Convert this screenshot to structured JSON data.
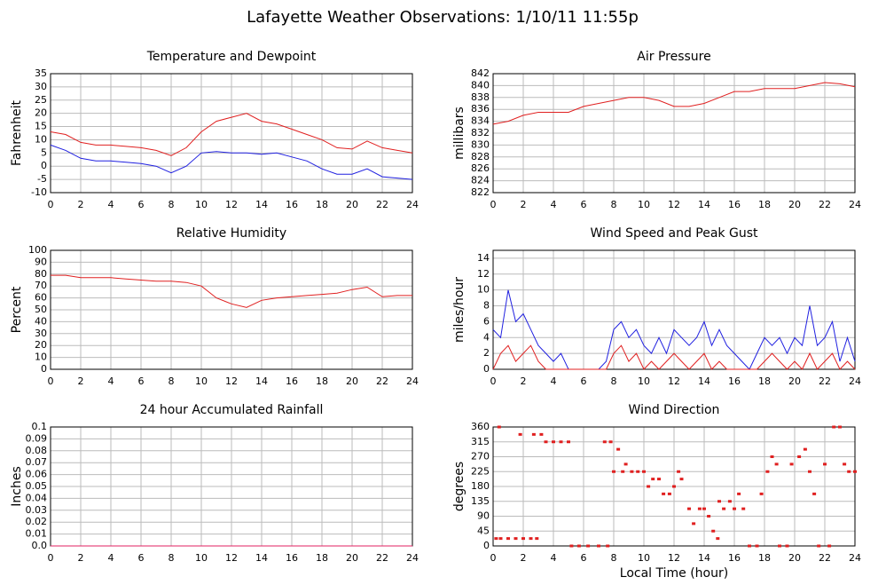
{
  "title": "Lafayette Weather Observations: 1/10/11 11:55p",
  "chart_data": [
    {
      "type": "line",
      "title": "Temperature and Dewpoint",
      "ylabel": "Fahrenheit",
      "grid": true,
      "x": [
        0,
        1,
        2,
        3,
        4,
        5,
        6,
        7,
        8,
        9,
        10,
        11,
        12,
        13,
        14,
        15,
        16,
        17,
        18,
        19,
        20,
        21,
        22,
        23,
        24
      ],
      "series": [
        {
          "color": "#e02020",
          "values": [
            13,
            12,
            9,
            8,
            8,
            7.5,
            7,
            6,
            4,
            7,
            13,
            17,
            18.5,
            20,
            17,
            16,
            14,
            12,
            10,
            7,
            6.5,
            9.5,
            7,
            6,
            5
          ]
        },
        {
          "color": "#2020e0",
          "values": [
            8,
            6,
            3,
            2,
            2,
            1.5,
            1,
            0,
            -2.5,
            0,
            5,
            5.5,
            5,
            5,
            4.5,
            5,
            3.5,
            2,
            -1,
            -3,
            -3,
            -1,
            -4,
            -4.5,
            -5
          ]
        }
      ],
      "xlim": [
        0,
        24
      ],
      "ylim": [
        -10,
        35
      ],
      "xticks": [
        0,
        2,
        4,
        6,
        8,
        10,
        12,
        14,
        16,
        18,
        20,
        22,
        24
      ],
      "yticks": [
        -10,
        -5,
        0,
        5,
        10,
        15,
        20,
        25,
        30,
        35
      ]
    },
    {
      "type": "line",
      "title": "Air Pressure",
      "ylabel": "millibars",
      "grid": true,
      "x": [
        0,
        1,
        2,
        3,
        4,
        5,
        6,
        7,
        8,
        9,
        10,
        11,
        12,
        13,
        14,
        15,
        16,
        17,
        18,
        19,
        20,
        21,
        22,
        23,
        24
      ],
      "series": [
        {
          "color": "#e02020",
          "values": [
            833.5,
            834,
            835,
            835.5,
            835.5,
            835.5,
            836.5,
            837,
            837.5,
            838,
            838,
            837.5,
            836.5,
            836.5,
            837,
            838,
            839,
            839,
            839.5,
            839.5,
            839.5,
            840,
            840.5,
            840.3,
            839.8
          ]
        }
      ],
      "xlim": [
        0,
        24
      ],
      "ylim": [
        822,
        842
      ],
      "xticks": [
        0,
        2,
        4,
        6,
        8,
        10,
        12,
        14,
        16,
        18,
        20,
        22,
        24
      ],
      "yticks": [
        822,
        824,
        826,
        828,
        830,
        832,
        834,
        836,
        838,
        840,
        842
      ]
    },
    {
      "type": "line",
      "title": "Relative Humidity",
      "ylabel": "Percent",
      "grid": true,
      "x": [
        0,
        1,
        2,
        3,
        4,
        5,
        6,
        7,
        8,
        9,
        10,
        11,
        12,
        13,
        14,
        15,
        16,
        17,
        18,
        19,
        20,
        21,
        22,
        23,
        24
      ],
      "series": [
        {
          "color": "#e02020",
          "values": [
            79,
            79,
            77,
            77,
            77,
            76,
            75,
            74,
            74,
            73,
            70,
            60,
            55,
            52,
            58,
            60,
            61,
            62,
            63,
            64,
            67,
            69,
            61,
            62,
            62
          ]
        }
      ],
      "xlim": [
        0,
        24
      ],
      "ylim": [
        0,
        100
      ],
      "xticks": [
        0,
        2,
        4,
        6,
        8,
        10,
        12,
        14,
        16,
        18,
        20,
        22,
        24
      ],
      "yticks": [
        0,
        10,
        20,
        30,
        40,
        50,
        60,
        70,
        80,
        90,
        100
      ]
    },
    {
      "type": "line",
      "title": "Wind Speed and Peak Gust",
      "ylabel": "miles/hour",
      "grid": true,
      "x": [
        0,
        0.5,
        1,
        1.5,
        2,
        2.5,
        3,
        3.5,
        4,
        4.5,
        5,
        5.5,
        6,
        6.5,
        7,
        7.5,
        8,
        8.5,
        9,
        9.5,
        10,
        10.5,
        11,
        11.5,
        12,
        12.5,
        13,
        13.5,
        14,
        14.5,
        15,
        15.5,
        16,
        16.5,
        17,
        17.5,
        18,
        18.5,
        19,
        19.5,
        20,
        20.5,
        21,
        21.5,
        22,
        22.5,
        23,
        23.5,
        24
      ],
      "series": [
        {
          "color": "#2020e0",
          "values": [
            5,
            4,
            10,
            6,
            7,
            5,
            3,
            2,
            1,
            2,
            0,
            0,
            0,
            0,
            0,
            1,
            5,
            6,
            4,
            5,
            3,
            2,
            4,
            2,
            5,
            4,
            3,
            4,
            6,
            3,
            5,
            3,
            2,
            1,
            0,
            2,
            4,
            3,
            4,
            2,
            4,
            3,
            8,
            3,
            4,
            6,
            1,
            4,
            1
          ]
        },
        {
          "color": "#e02020",
          "values": [
            0,
            2,
            3,
            1,
            2,
            3,
            1,
            0,
            0,
            0,
            0,
            0,
            0,
            0,
            0,
            0,
            2,
            3,
            1,
            2,
            0,
            1,
            0,
            1,
            2,
            1,
            0,
            1,
            2,
            0,
            1,
            0,
            0,
            0,
            0,
            0,
            1,
            2,
            1,
            0,
            1,
            0,
            2,
            0,
            1,
            2,
            0,
            1,
            0
          ]
        }
      ],
      "xlim": [
        0,
        24
      ],
      "ylim": [
        0,
        15
      ],
      "xticks": [
        0,
        2,
        4,
        6,
        8,
        10,
        12,
        14,
        16,
        18,
        20,
        22,
        24
      ],
      "yticks": [
        0,
        2,
        4,
        6,
        8,
        10,
        12,
        14
      ]
    },
    {
      "type": "line",
      "title": "24 hour Accumulated Rainfall",
      "ylabel": "Inches",
      "grid": true,
      "x": [
        0,
        2,
        4,
        6,
        8,
        10,
        12,
        14,
        16,
        18,
        20,
        22,
        24
      ],
      "series": [
        {
          "color": "#e02060",
          "values": [
            0,
            0,
            0,
            0,
            0,
            0,
            0,
            0,
            0,
            0,
            0,
            0,
            0
          ]
        }
      ],
      "xlim": [
        0,
        24
      ],
      "ylim": [
        0,
        0.1
      ],
      "xticks": [
        0,
        2,
        4,
        6,
        8,
        10,
        12,
        14,
        16,
        18,
        20,
        22,
        24
      ],
      "yticks": [
        {
          "value": 0,
          "label": "0.0"
        },
        0.01,
        0.02,
        0.03,
        0.04,
        0.05,
        0.06,
        0.07,
        0.08,
        0.09,
        0.1
      ]
    },
    {
      "type": "scatter",
      "title": "Wind Direction",
      "ylabel": "degrees",
      "xlabel": "Local Time (hour)",
      "grid": true,
      "series": [
        {
          "color": "#e02020",
          "x": [
            0.2,
            0.5,
            1,
            1.5,
            2,
            2.5,
            2.9,
            0.4,
            1.8,
            2.7,
            3.2,
            3.5,
            4,
            4.5,
            5,
            5.2,
            5.7,
            6.3,
            7,
            7.6,
            7.4,
            7.8,
            8,
            8.3,
            8.6,
            8.8,
            9.2,
            9.6,
            10,
            10.3,
            10.6,
            11,
            11.3,
            11.7,
            12,
            12.3,
            12.5,
            13,
            13.3,
            13.7,
            14,
            14.3,
            14.6,
            14.9,
            15,
            15.3,
            15.7,
            16,
            16.3,
            16.6,
            17,
            17.5,
            17.8,
            18.2,
            18.5,
            18.8,
            19,
            19.5,
            19.8,
            20.3,
            20.7,
            21,
            21.3,
            21.6,
            22,
            22.3,
            22.6,
            23,
            23.3,
            23.6,
            24
          ],
          "values": [
            22.5,
            22.5,
            22.5,
            22.5,
            22.5,
            22.5,
            22.5,
            360,
            337.5,
            337.5,
            337.5,
            315,
            315,
            315,
            315,
            0,
            0,
            0,
            0,
            0,
            315,
            315,
            225,
            292.5,
            225,
            247.5,
            225,
            225,
            225,
            180,
            202.5,
            202.5,
            157.5,
            157.5,
            180,
            225,
            202.5,
            112.5,
            67.5,
            112.5,
            112.5,
            90,
            45,
            22.5,
            135,
            112.5,
            135,
            112.5,
            157.5,
            112.5,
            0,
            0,
            157.5,
            225,
            270,
            247.5,
            0,
            0,
            247.5,
            270,
            292.5,
            225,
            157.5,
            0,
            247.5,
            0,
            360,
            360,
            247.5,
            225,
            225
          ]
        }
      ],
      "xlim": [
        0,
        24
      ],
      "ylim": [
        0,
        360
      ],
      "xticks": [
        0,
        2,
        4,
        6,
        8,
        10,
        12,
        14,
        16,
        18,
        20,
        22,
        24
      ],
      "yticks": [
        0,
        45,
        90,
        135,
        180,
        225,
        270,
        315,
        360
      ]
    }
  ]
}
